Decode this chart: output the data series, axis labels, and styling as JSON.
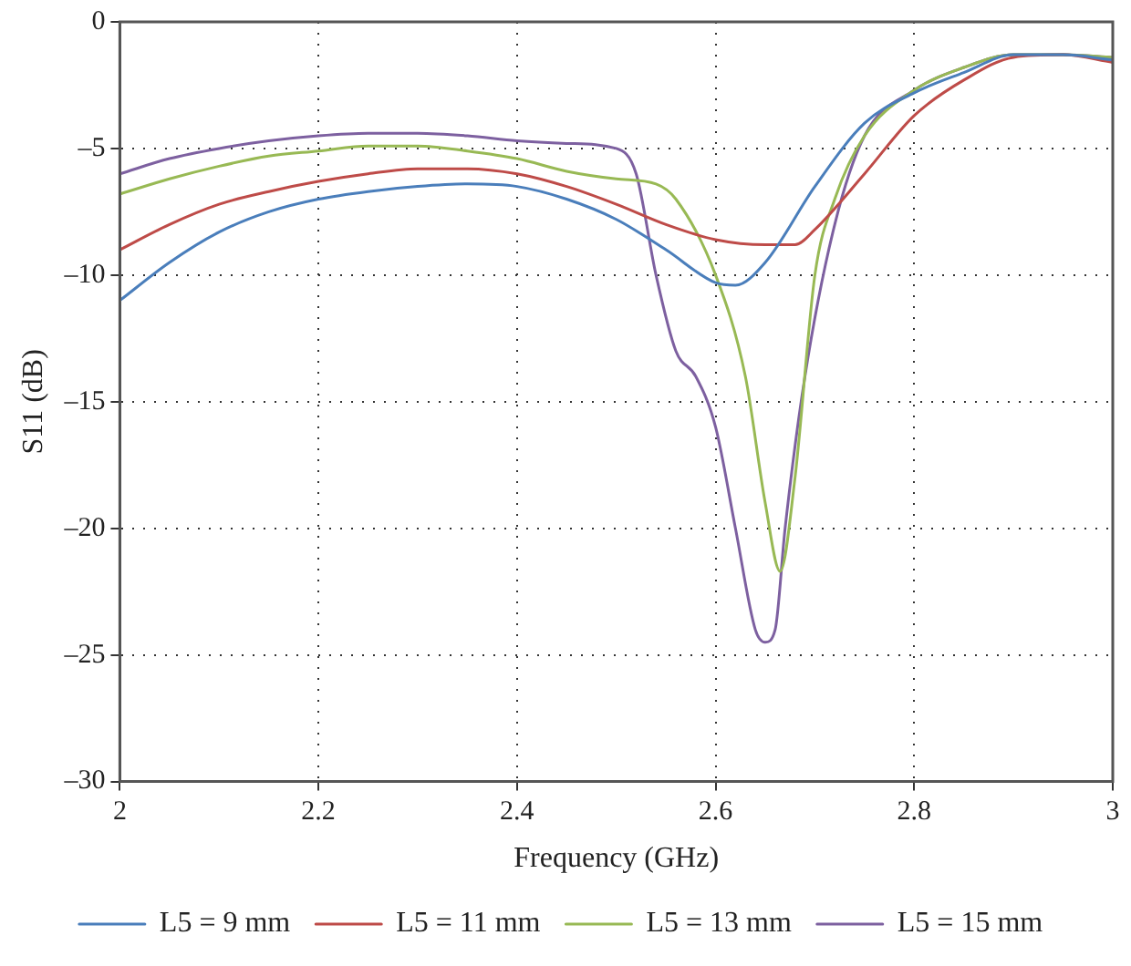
{
  "chart_data": {
    "type": "line",
    "xlabel": "Frequency (GHz)",
    "ylabel": "S11 (dB)",
    "xlim": [
      2,
      3
    ],
    "xticks": [
      2,
      2.2,
      2.4,
      2.6,
      2.8,
      3
    ],
    "ylim": [
      -30,
      0
    ],
    "yticks": [
      {
        "value": -30,
        "label": "–30"
      },
      {
        "value": -25,
        "label": "–25"
      },
      {
        "value": -20,
        "label": "–20"
      },
      {
        "value": -15,
        "label": "–15"
      },
      {
        "value": -10,
        "label": "–10"
      },
      {
        "value": -5,
        "label": "–5"
      },
      0
    ],
    "grid": true,
    "legend": "bottom",
    "marker": "none",
    "line_style": "solid",
    "series": [
      {
        "name": "L5 = 9 mm",
        "color": "#4a7ebb",
        "x": [
          2,
          2.05,
          2.1,
          2.15,
          2.2,
          2.25,
          2.3,
          2.35,
          2.4,
          2.45,
          2.5,
          2.55,
          2.6,
          2.62,
          2.65,
          2.7,
          2.75,
          2.8,
          2.85,
          2.9,
          2.95,
          3
        ],
        "values": [
          -11,
          -9.5,
          -8.3,
          -7.5,
          -7,
          -6.7,
          -6.5,
          -6.4,
          -6.5,
          -7,
          -7.8,
          -9,
          -10.3,
          -10.4,
          -9.5,
          -6.5,
          -4,
          -2.8,
          -2,
          -1.3,
          -1.3,
          -1.5
        ]
      },
      {
        "name": "L5 = 11 mm",
        "color": "#be4b48",
        "x": [
          2,
          2.05,
          2.1,
          2.15,
          2.2,
          2.25,
          2.3,
          2.35,
          2.4,
          2.45,
          2.5,
          2.55,
          2.6,
          2.65,
          2.68,
          2.7,
          2.75,
          2.8,
          2.85,
          2.9,
          2.95,
          3
        ],
        "values": [
          -9,
          -8,
          -7.2,
          -6.7,
          -6.3,
          -6,
          -5.8,
          -5.8,
          -6,
          -6.5,
          -7.2,
          -8,
          -8.6,
          -8.8,
          -8.8,
          -8.2,
          -6,
          -3.7,
          -2.3,
          -1.4,
          -1.3,
          -1.6
        ]
      },
      {
        "name": "L5 = 13 mm",
        "color": "#98b954",
        "x": [
          2,
          2.05,
          2.1,
          2.15,
          2.2,
          2.25,
          2.3,
          2.35,
          2.4,
          2.45,
          2.5,
          2.54,
          2.56,
          2.6,
          2.63,
          2.65,
          2.665,
          2.68,
          2.7,
          2.72,
          2.75,
          2.8,
          2.85,
          2.9,
          2.95,
          3
        ],
        "values": [
          -6.8,
          -6.2,
          -5.7,
          -5.3,
          -5.1,
          -4.9,
          -4.9,
          -5.1,
          -5.4,
          -5.9,
          -6.2,
          -6.4,
          -7,
          -10,
          -14,
          -19,
          -21.7,
          -18,
          -10,
          -7,
          -4.5,
          -2.7,
          -1.8,
          -1.3,
          -1.3,
          -1.4
        ]
      },
      {
        "name": "L5 = 15 mm",
        "color": "#7d60a0",
        "x": [
          2,
          2.05,
          2.1,
          2.15,
          2.2,
          2.25,
          2.3,
          2.35,
          2.4,
          2.45,
          2.5,
          2.52,
          2.54,
          2.56,
          2.58,
          2.6,
          2.62,
          2.64,
          2.65,
          2.66,
          2.67,
          2.69,
          2.72,
          2.75,
          2.8,
          2.85,
          2.9,
          2.95,
          3
        ],
        "values": [
          -6,
          -5.4,
          -5,
          -4.7,
          -4.5,
          -4.4,
          -4.4,
          -4.5,
          -4.7,
          -4.8,
          -5,
          -6,
          -10,
          -13,
          -14,
          -16,
          -20,
          -24,
          -24.5,
          -24,
          -20,
          -14,
          -8,
          -4.5,
          -2.7,
          -1.8,
          -1.3,
          -1.3,
          -1.4
        ]
      }
    ]
  }
}
